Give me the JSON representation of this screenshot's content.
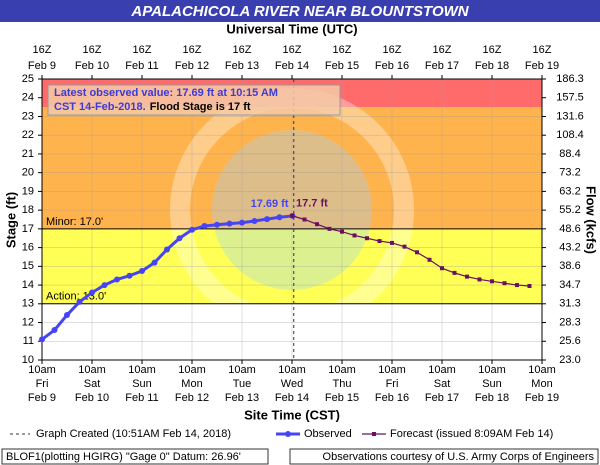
{
  "chart_data": {
    "type": "line",
    "title": "APALACHICOLA RIVER NEAR BLOUNTSTOWN",
    "top_axis_label": "Universal Time (UTC)",
    "xlabel": "Site Time (CST)",
    "ylabel": "Stage (ft)",
    "y2label": "Flow (kcfs)",
    "xlim": [
      "2018-02-09T10:00",
      "2018-02-19T10:00"
    ],
    "xticks": [
      {
        "value": "2018-02-09T10:00",
        "label": "10am"
      },
      {
        "value": "2018-02-10T10:00",
        "label": "10am"
      },
      {
        "value": "2018-02-11T10:00",
        "label": "10am"
      },
      {
        "value": "2018-02-12T10:00",
        "label": "10am"
      },
      {
        "value": "2018-02-13T10:00",
        "label": "10am"
      },
      {
        "value": "2018-02-14T10:00",
        "label": "10am"
      },
      {
        "value": "2018-02-15T10:00",
        "label": "10am"
      },
      {
        "value": "2018-02-16T10:00",
        "label": "10am"
      },
      {
        "value": "2018-02-17T10:00",
        "label": "10am"
      },
      {
        "value": "2018-02-18T10:00",
        "label": "10am"
      },
      {
        "value": "2018-02-19T10:00",
        "label": "10am"
      }
    ],
    "xtick_days": [
      "Fri",
      "Sat",
      "Sun",
      "Mon",
      "Tue",
      "Wed",
      "Thu",
      "Fri",
      "Sat",
      "Sun",
      "Mon"
    ],
    "xtick_dates": [
      "Feb 9",
      "Feb 10",
      "Feb 11",
      "Feb 12",
      "Feb 13",
      "Feb 14",
      "Feb 15",
      "Feb 16",
      "Feb 17",
      "Feb 18",
      "Feb 19"
    ],
    "x2ticks": [
      {
        "value": "2018-02-09T10:00",
        "label": "16Z"
      },
      {
        "value": "2018-02-10T10:00",
        "label": "16Z"
      },
      {
        "value": "2018-02-11T10:00",
        "label": "16Z"
      },
      {
        "value": "2018-02-12T10:00",
        "label": "16Z"
      },
      {
        "value": "2018-02-13T10:00",
        "label": "16Z"
      },
      {
        "value": "2018-02-14T10:00",
        "label": "16Z"
      },
      {
        "value": "2018-02-15T10:00",
        "label": "16Z"
      },
      {
        "value": "2018-02-16T10:00",
        "label": "16Z"
      },
      {
        "value": "2018-02-17T10:00",
        "label": "16Z"
      },
      {
        "value": "2018-02-18T10:00",
        "label": "16Z"
      },
      {
        "value": "2018-02-19T10:00",
        "label": "16Z"
      }
    ],
    "x2tick_dates": [
      "Feb 9",
      "Feb 10",
      "Feb 11",
      "Feb 12",
      "Feb 13",
      "Feb 14",
      "Feb 15",
      "Feb 16",
      "Feb 17",
      "Feb 18",
      "Feb 19"
    ],
    "ylim": [
      10,
      25
    ],
    "yticks": [
      10,
      11,
      12,
      13,
      14,
      15,
      16,
      17,
      18,
      19,
      20,
      21,
      22,
      23,
      24,
      25
    ],
    "y2ticks": [
      {
        "value": 23,
        "label": "23.0"
      },
      25.6,
      28.3,
      31.3,
      34.7,
      38.6,
      43.2,
      48.6,
      55.2,
      63.2,
      73.2,
      88.4,
      108.4,
      131.6,
      157.5,
      186.3
    ],
    "grid": true,
    "bands": [
      {
        "lower": 13,
        "color": "#ffff55"
      },
      {
        "lower": 17,
        "color": "#ffb34d"
      },
      {
        "lower": 23.5,
        "color": "#ff6b6b"
      }
    ],
    "stage_lines": [
      {
        "value": 13,
        "label": "Action: 13.0'"
      },
      {
        "value": 17,
        "label": "Minor: 17.0'"
      }
    ],
    "series": [
      {
        "name": "Observed",
        "color": "#4545f5",
        "marker": "circle",
        "last_label": "17.69 ft",
        "x": [
          "2018-02-09T10:00",
          "2018-02-09T16:00",
          "2018-02-09T22:00",
          "2018-02-10T04:00",
          "2018-02-10T10:00",
          "2018-02-10T16:00",
          "2018-02-10T22:00",
          "2018-02-11T04:00",
          "2018-02-11T10:00",
          "2018-02-11T16:00",
          "2018-02-11T22:00",
          "2018-02-12T04:00",
          "2018-02-12T10:00",
          "2018-02-12T16:00",
          "2018-02-12T22:00",
          "2018-02-13T04:00",
          "2018-02-13T10:00",
          "2018-02-13T16:00",
          "2018-02-13T22:00",
          "2018-02-14T04:00",
          "2018-02-14T10:15"
        ],
        "values": [
          11.1,
          11.6,
          12.4,
          13.1,
          13.6,
          14.0,
          14.3,
          14.5,
          14.75,
          15.2,
          15.9,
          16.5,
          16.95,
          17.15,
          17.22,
          17.28,
          17.33,
          17.42,
          17.52,
          17.62,
          17.69
        ]
      },
      {
        "name": "Forecast (issued 8:09AM Feb 14)",
        "color": "#6b1060",
        "marker": "square",
        "last_label": "17.7 ft",
        "x": [
          "2018-02-14T10:00",
          "2018-02-14T16:00",
          "2018-02-14T22:00",
          "2018-02-15T04:00",
          "2018-02-15T10:00",
          "2018-02-15T16:00",
          "2018-02-15T22:00",
          "2018-02-16T04:00",
          "2018-02-16T10:00",
          "2018-02-16T16:00",
          "2018-02-16T22:00",
          "2018-02-17T04:00",
          "2018-02-17T10:00",
          "2018-02-17T16:00",
          "2018-02-17T22:00",
          "2018-02-18T04:00",
          "2018-02-18T10:00",
          "2018-02-18T16:00",
          "2018-02-18T22:00",
          "2018-02-19T04:00"
        ],
        "values": [
          17.7,
          17.5,
          17.25,
          17.0,
          16.85,
          16.65,
          16.5,
          16.35,
          16.25,
          16.05,
          15.75,
          15.35,
          14.9,
          14.65,
          14.45,
          14.3,
          14.2,
          14.1,
          14.0,
          13.95
        ]
      }
    ],
    "created": {
      "label": "Graph Created (10:51AM Feb 14, 2018)",
      "x": "2018-02-14T10:51"
    },
    "annotation": {
      "lines": [
        "Latest observed value: 17.69 ft at 10:15 AM",
        "CST 14-Feb-2018."
      ],
      "flood_text": "Flood Stage is 17 ft"
    },
    "footer_left": "BLOF1(plotting HGIRG) \"Gage 0\" Datum: 26.96'",
    "footer_right": "Observations courtesy of U.S. Army Corps of Engineers"
  }
}
